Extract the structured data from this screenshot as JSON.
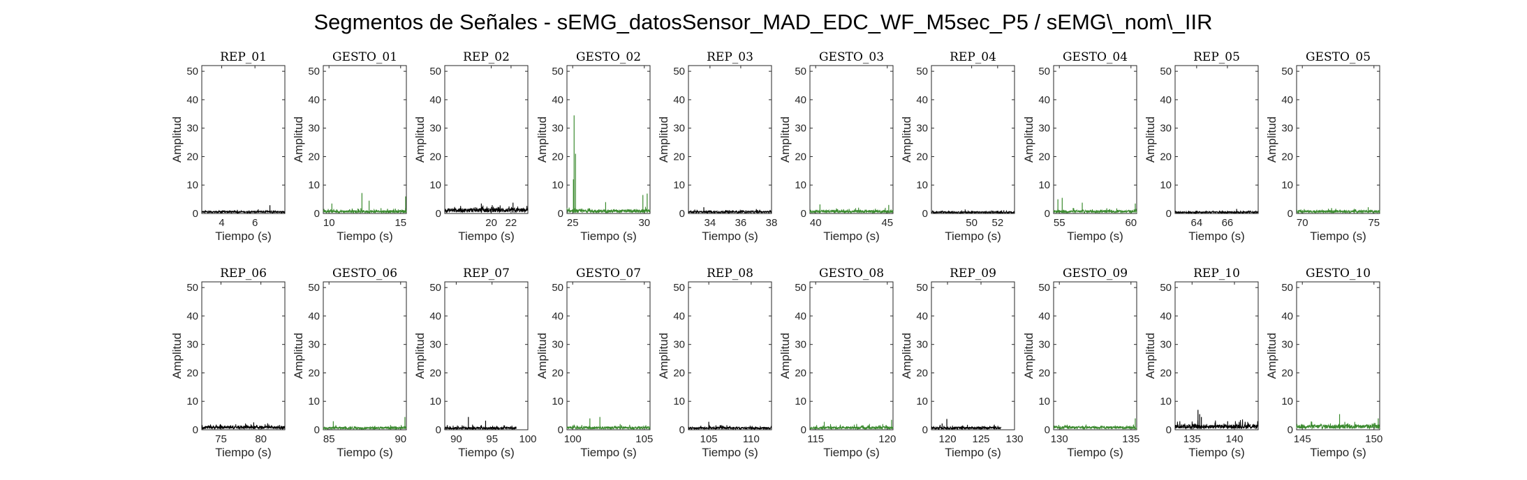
{
  "figure": {
    "title": "Segmentos de Señales - sEMG_datosSensor_MAD_EDC_WF_M5sec_P5 / sEMG\\_nom\\_IIR"
  },
  "colors": {
    "rep": "#000000",
    "gesto": "#3a8a2e",
    "axis": "#262626"
  },
  "chart_data": [
    {
      "type": "line",
      "title": "REP_01",
      "xlabel": "Tiempo (s)",
      "ylabel": "Amplitud",
      "xlim": [
        2.8,
        7.8
      ],
      "ylim": [
        0,
        52
      ],
      "xticks": [
        4,
        6
      ],
      "yticks": [
        0,
        10,
        20,
        30,
        40,
        50
      ],
      "series": [
        {
          "name": "",
          "color": "#000000",
          "baseline": 0.8,
          "noise": 0.6,
          "spikes": [
            [
              6.9,
              2.9
            ]
          ]
        }
      ]
    },
    {
      "type": "line",
      "title": "GESTO_01",
      "xlabel": "Tiempo (s)",
      "ylabel": "Amplitud",
      "xlim": [
        9.6,
        15.4
      ],
      "ylim": [
        0,
        52
      ],
      "xticks": [
        10,
        15
      ],
      "yticks": [
        0,
        10,
        20,
        30,
        40,
        50
      ],
      "series": [
        {
          "name": "",
          "color": "#3a8a2e",
          "baseline": 1.0,
          "noise": 1.0,
          "spikes": [
            [
              10.2,
              3.5
            ],
            [
              12.3,
              7.2
            ],
            [
              12.8,
              4.5
            ],
            [
              15.35,
              6.0
            ]
          ]
        }
      ]
    },
    {
      "type": "line",
      "title": "REP_02",
      "xlabel": "Tiempo (s)",
      "ylabel": "Amplitud",
      "xlim": [
        15.3,
        23.7
      ],
      "ylim": [
        0,
        52
      ],
      "xticks": [
        20,
        22
      ],
      "yticks": [
        0,
        10,
        20,
        30,
        40,
        50
      ],
      "series": [
        {
          "name": "",
          "color": "#000000",
          "baseline": 1.6,
          "noise": 1.4,
          "spikes": [
            [
              19.0,
              3.5
            ],
            [
              22.2,
              3.8
            ]
          ]
        }
      ]
    },
    {
      "type": "line",
      "title": "GESTO_02",
      "xlabel": "Tiempo (s)",
      "ylabel": "Amplitud",
      "xlim": [
        24.6,
        30.4
      ],
      "ylim": [
        0,
        52
      ],
      "xticks": [
        25,
        30
      ],
      "yticks": [
        0,
        10,
        20,
        30,
        40,
        50
      ],
      "series": [
        {
          "name": "",
          "color": "#3a8a2e",
          "baseline": 1.2,
          "noise": 1.0,
          "spikes": [
            [
              25.1,
              34.5
            ],
            [
              25.2,
              21.0
            ],
            [
              25.05,
              12.0
            ],
            [
              27.3,
              4.0
            ],
            [
              29.9,
              6.5
            ],
            [
              30.2,
              7.0
            ]
          ]
        }
      ]
    },
    {
      "type": "line",
      "title": "REP_03",
      "xlabel": "Tiempo (s)",
      "ylabel": "Amplitud",
      "xlim": [
        32.6,
        38.0
      ],
      "ylim": [
        0,
        52
      ],
      "xticks": [
        34,
        36,
        38
      ],
      "yticks": [
        0,
        10,
        20,
        30,
        40,
        50
      ],
      "series": [
        {
          "name": "",
          "color": "#000000",
          "baseline": 0.8,
          "noise": 0.8,
          "spikes": [
            [
              33.6,
              2.2
            ]
          ]
        }
      ]
    },
    {
      "type": "line",
      "title": "GESTO_03",
      "xlabel": "Tiempo (s)",
      "ylabel": "Amplitud",
      "xlim": [
        39.6,
        45.4
      ],
      "ylim": [
        0,
        52
      ],
      "xticks": [
        40,
        45
      ],
      "yticks": [
        0,
        10,
        20,
        30,
        40,
        50
      ],
      "series": [
        {
          "name": "",
          "color": "#3a8a2e",
          "baseline": 1.0,
          "noise": 1.0,
          "spikes": [
            [
              40.3,
              3.2
            ],
            [
              45.1,
              3.0
            ]
          ]
        }
      ]
    },
    {
      "type": "line",
      "title": "REP_04",
      "xlabel": "Tiempo (s)",
      "ylabel": "Amplitud",
      "xlim": [
        46.9,
        53.3
      ],
      "ylim": [
        0,
        52
      ],
      "xticks": [
        50,
        52
      ],
      "yticks": [
        0,
        10,
        20,
        30,
        40,
        50
      ],
      "series": [
        {
          "name": "",
          "color": "#000000",
          "baseline": 0.6,
          "noise": 0.5,
          "spikes": [
            [
              49.5,
              1.4
            ]
          ]
        }
      ]
    },
    {
      "type": "line",
      "title": "GESTO_04",
      "xlabel": "Tiempo (s)",
      "ylabel": "Amplitud",
      "xlim": [
        54.6,
        60.4
      ],
      "ylim": [
        0,
        52
      ],
      "xticks": [
        55,
        60
      ],
      "yticks": [
        0,
        10,
        20,
        30,
        40,
        50
      ],
      "series": [
        {
          "name": "",
          "color": "#3a8a2e",
          "baseline": 1.0,
          "noise": 1.0,
          "spikes": [
            [
              54.9,
              5.0
            ],
            [
              55.2,
              5.5
            ],
            [
              56.6,
              3.8
            ],
            [
              60.3,
              3.5
            ]
          ]
        }
      ]
    },
    {
      "type": "line",
      "title": "REP_05",
      "xlabel": "Tiempo (s)",
      "ylabel": "Amplitud",
      "xlim": [
        62.6,
        68.0
      ],
      "ylim": [
        0,
        52
      ],
      "xticks": [
        64,
        66
      ],
      "yticks": [
        0,
        10,
        20,
        30,
        40,
        50
      ],
      "series": [
        {
          "name": "",
          "color": "#000000",
          "baseline": 0.6,
          "noise": 0.6,
          "spikes": [
            [
              66.6,
              1.6
            ]
          ]
        }
      ]
    },
    {
      "type": "line",
      "title": "GESTO_05",
      "xlabel": "Tiempo (s)",
      "ylabel": "Amplitud",
      "xlim": [
        69.6,
        75.4
      ],
      "ylim": [
        0,
        52
      ],
      "xticks": [
        70,
        75
      ],
      "yticks": [
        0,
        10,
        20,
        30,
        40,
        50
      ],
      "series": [
        {
          "name": "",
          "color": "#3a8a2e",
          "baseline": 1.0,
          "noise": 0.8,
          "spikes": [
            [
              74.6,
              2.2
            ]
          ]
        }
      ]
    },
    {
      "type": "line",
      "title": "REP_06",
      "xlabel": "Tiempo (s)",
      "ylabel": "Amplitud",
      "xlim": [
        72.6,
        83.0
      ],
      "ylim": [
        0,
        52
      ],
      "xticks": [
        75,
        80
      ],
      "yticks": [
        0,
        10,
        20,
        30,
        40,
        50
      ],
      "series": [
        {
          "name": "",
          "color": "#000000",
          "baseline": 1.2,
          "noise": 1.0,
          "spikes": [
            [
              79.1,
              2.6
            ]
          ]
        }
      ]
    },
    {
      "type": "line",
      "title": "GESTO_06",
      "xlabel": "Tiempo (s)",
      "ylabel": "Amplitud",
      "xlim": [
        84.6,
        90.4
      ],
      "ylim": [
        0,
        52
      ],
      "xticks": [
        85,
        90
      ],
      "yticks": [
        0,
        10,
        20,
        30,
        40,
        50
      ],
      "series": [
        {
          "name": "",
          "color": "#3a8a2e",
          "baseline": 0.9,
          "noise": 0.9,
          "spikes": [
            [
              85.3,
              3.0
            ],
            [
              90.3,
              4.5
            ]
          ]
        }
      ]
    },
    {
      "type": "line",
      "title": "REP_07",
      "xlabel": "Tiempo (s)",
      "ylabel": "Amplitud",
      "xlim": [
        88.4,
        100.0
      ],
      "ylim": [
        0,
        52
      ],
      "xticks": [
        90,
        95,
        100
      ],
      "yticks": [
        0,
        10,
        20,
        30,
        40,
        50
      ],
      "series": [
        {
          "name": "",
          "color": "#000000",
          "baseline": 0.8,
          "noise": 1.0,
          "spikes": [
            [
              91.7,
              4.5
            ],
            [
              94.1,
              3.2
            ]
          ],
          "xend": 98.4
        }
      ]
    },
    {
      "type": "line",
      "title": "GESTO_07",
      "xlabel": "Tiempo (s)",
      "ylabel": "Amplitud",
      "xlim": [
        99.6,
        105.4
      ],
      "ylim": [
        0,
        52
      ],
      "xticks": [
        100,
        105
      ],
      "yticks": [
        0,
        10,
        20,
        30,
        40,
        50
      ],
      "series": [
        {
          "name": "",
          "color": "#3a8a2e",
          "baseline": 1.0,
          "noise": 0.9,
          "spikes": [
            [
              101.2,
              4.0
            ],
            [
              101.9,
              4.5
            ]
          ]
        }
      ]
    },
    {
      "type": "line",
      "title": "REP_08",
      "xlabel": "Tiempo (s)",
      "ylabel": "Amplitud",
      "xlim": [
        102.6,
        112.4
      ],
      "ylim": [
        0,
        52
      ],
      "xticks": [
        105,
        110
      ],
      "yticks": [
        0,
        10,
        20,
        30,
        40,
        50
      ],
      "series": [
        {
          "name": "",
          "color": "#000000",
          "baseline": 0.8,
          "noise": 0.9,
          "spikes": [
            [
              105.0,
              2.8
            ]
          ]
        }
      ]
    },
    {
      "type": "line",
      "title": "GESTO_08",
      "xlabel": "Tiempo (s)",
      "ylabel": "Amplitud",
      "xlim": [
        114.6,
        120.4
      ],
      "ylim": [
        0,
        52
      ],
      "xticks": [
        115,
        120
      ],
      "yticks": [
        0,
        10,
        20,
        30,
        40,
        50
      ],
      "series": [
        {
          "name": "",
          "color": "#3a8a2e",
          "baseline": 1.0,
          "noise": 1.0,
          "spikes": [
            [
              115.6,
              2.8
            ],
            [
              120.3,
              3.5
            ]
          ]
        }
      ]
    },
    {
      "type": "line",
      "title": "REP_09",
      "xlabel": "Tiempo (s)",
      "ylabel": "Amplitud",
      "xlim": [
        117.6,
        130.0
      ],
      "ylim": [
        0,
        52
      ],
      "xticks": [
        120,
        125,
        130
      ],
      "yticks": [
        0,
        10,
        20,
        30,
        40,
        50
      ],
      "series": [
        {
          "name": "",
          "color": "#000000",
          "baseline": 0.9,
          "noise": 1.0,
          "spikes": [
            [
              119.9,
              3.8
            ],
            [
              119.2,
              2.2
            ]
          ],
          "xend": 128.0
        }
      ]
    },
    {
      "type": "line",
      "title": "GESTO_09",
      "xlabel": "Tiempo (s)",
      "ylabel": "Amplitud",
      "xlim": [
        129.6,
        135.4
      ],
      "ylim": [
        0,
        52
      ],
      "xticks": [
        130,
        135
      ],
      "yticks": [
        0,
        10,
        20,
        30,
        40,
        50
      ],
      "series": [
        {
          "name": "",
          "color": "#3a8a2e",
          "baseline": 1.1,
          "noise": 1.0,
          "spikes": [
            [
              135.3,
              4.0
            ]
          ]
        }
      ]
    },
    {
      "type": "line",
      "title": "REP_10",
      "xlabel": "Tiempo (s)",
      "ylabel": "Amplitud",
      "xlim": [
        133.0,
        142.8
      ],
      "ylim": [
        0,
        52
      ],
      "xticks": [
        135,
        140
      ],
      "yticks": [
        0,
        10,
        20,
        30,
        40,
        50
      ],
      "series": [
        {
          "name": "",
          "color": "#000000",
          "baseline": 1.6,
          "noise": 2.0,
          "spikes": [
            [
              135.7,
              7.0
            ],
            [
              135.9,
              5.5
            ],
            [
              136.1,
              4.5
            ],
            [
              139.2,
              3.0
            ]
          ]
        }
      ]
    },
    {
      "type": "line",
      "title": "GESTO_10",
      "xlabel": "Tiempo (s)",
      "ylabel": "Amplitud",
      "xlim": [
        144.6,
        150.4
      ],
      "ylim": [
        0,
        52
      ],
      "xticks": [
        145,
        150
      ],
      "yticks": [
        0,
        10,
        20,
        30,
        40,
        50
      ],
      "series": [
        {
          "name": "",
          "color": "#3a8a2e",
          "baseline": 1.6,
          "noise": 1.4,
          "spikes": [
            [
              147.6,
              5.5
            ],
            [
              150.3,
              4.0
            ]
          ]
        }
      ]
    }
  ]
}
